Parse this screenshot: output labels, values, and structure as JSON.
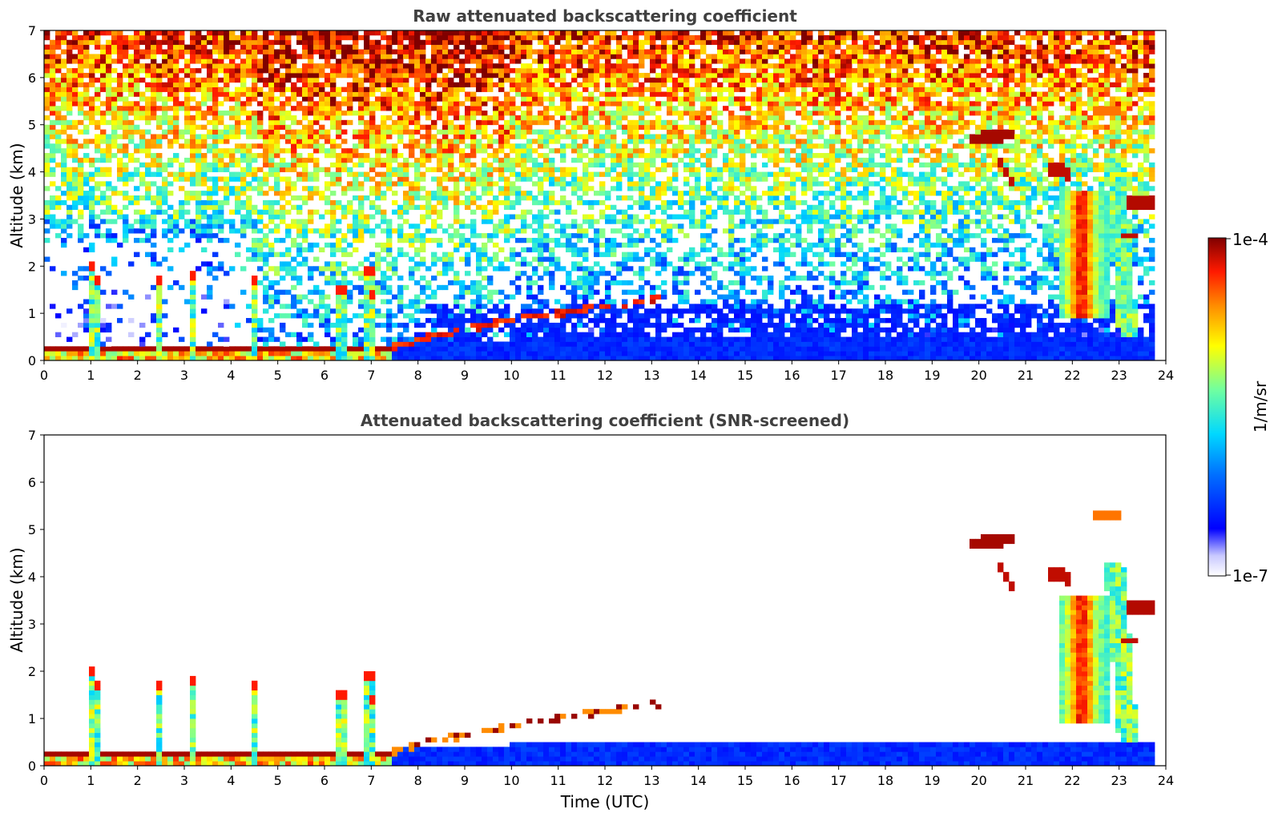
{
  "figure": {
    "colors": {
      "background": "#ffffff",
      "title": "#404040",
      "colormap": [
        "#f0f0ff",
        "#0000ff",
        "#0080ff",
        "#00e0ff",
        "#80ff80",
        "#ffff00",
        "#ff9900",
        "#ff2000",
        "#800000"
      ]
    }
  },
  "chart_data": [
    {
      "type": "heatmap",
      "title": "Raw attenuated backscattering coefficient",
      "xlabel": "",
      "ylabel": "Altitude (km)",
      "xlim": [
        0,
        24
      ],
      "ylim": [
        0,
        7
      ],
      "xticks": [
        "0",
        "1",
        "2",
        "3",
        "4",
        "5",
        "6",
        "7",
        "8",
        "9",
        "10",
        "11",
        "12",
        "13",
        "14",
        "15",
        "16",
        "17",
        "18",
        "19",
        "20",
        "21",
        "22",
        "23",
        "24"
      ],
      "yticks": [
        "0",
        "1",
        "2",
        "3",
        "4",
        "5",
        "6",
        "7"
      ],
      "grid": false,
      "log_scale_colors": true,
      "features": {
        "boundary_layer_top_km": {
          "x": [
            0,
            2,
            4,
            6,
            7,
            7.5,
            8,
            9,
            10,
            11,
            12,
            13
          ],
          "y": [
            0.15,
            0.2,
            0.25,
            0.25,
            0.25,
            0.3,
            0.45,
            0.65,
            0.85,
            1.0,
            1.15,
            1.3
          ]
        },
        "cirrus_layers_km": [
          {
            "x": [
              19.8,
              20.8
            ],
            "y": [
              4.7,
              4.8
            ]
          },
          {
            "x": [
              21.5,
              21.9
            ],
            "y": [
              4.1,
              4.0
            ]
          },
          {
            "x": [
              23.2,
              23.8
            ],
            "y": [
              3.4,
              3.3
            ]
          },
          {
            "x": [
              22.5,
              23.0
            ],
            "y": [
              5.3,
              5.2
            ]
          }
        ],
        "precipitation_fall_streaks_utc": [
          22.2,
          23.2
        ]
      }
    },
    {
      "type": "heatmap",
      "title": "Attenuated backscattering coefficient (SNR-screened)",
      "xlabel": "Time (UTC)",
      "ylabel": "Altitude (km)",
      "xlim": [
        0,
        24
      ],
      "ylim": [
        0,
        7
      ],
      "xticks": [
        "0",
        "1",
        "2",
        "3",
        "4",
        "5",
        "6",
        "7",
        "8",
        "9",
        "10",
        "11",
        "12",
        "13",
        "14",
        "15",
        "16",
        "17",
        "18",
        "19",
        "20",
        "21",
        "22",
        "23",
        "24"
      ],
      "yticks": [
        "0",
        "1",
        "2",
        "3",
        "4",
        "5",
        "6",
        "7"
      ],
      "grid": false,
      "log_scale_colors": true
    }
  ],
  "colorbar": {
    "label": "1/m/sr",
    "max_label": "1e-4",
    "min_label": "1e-7",
    "range": [
      1e-07,
      0.0001
    ],
    "scale": "log"
  }
}
